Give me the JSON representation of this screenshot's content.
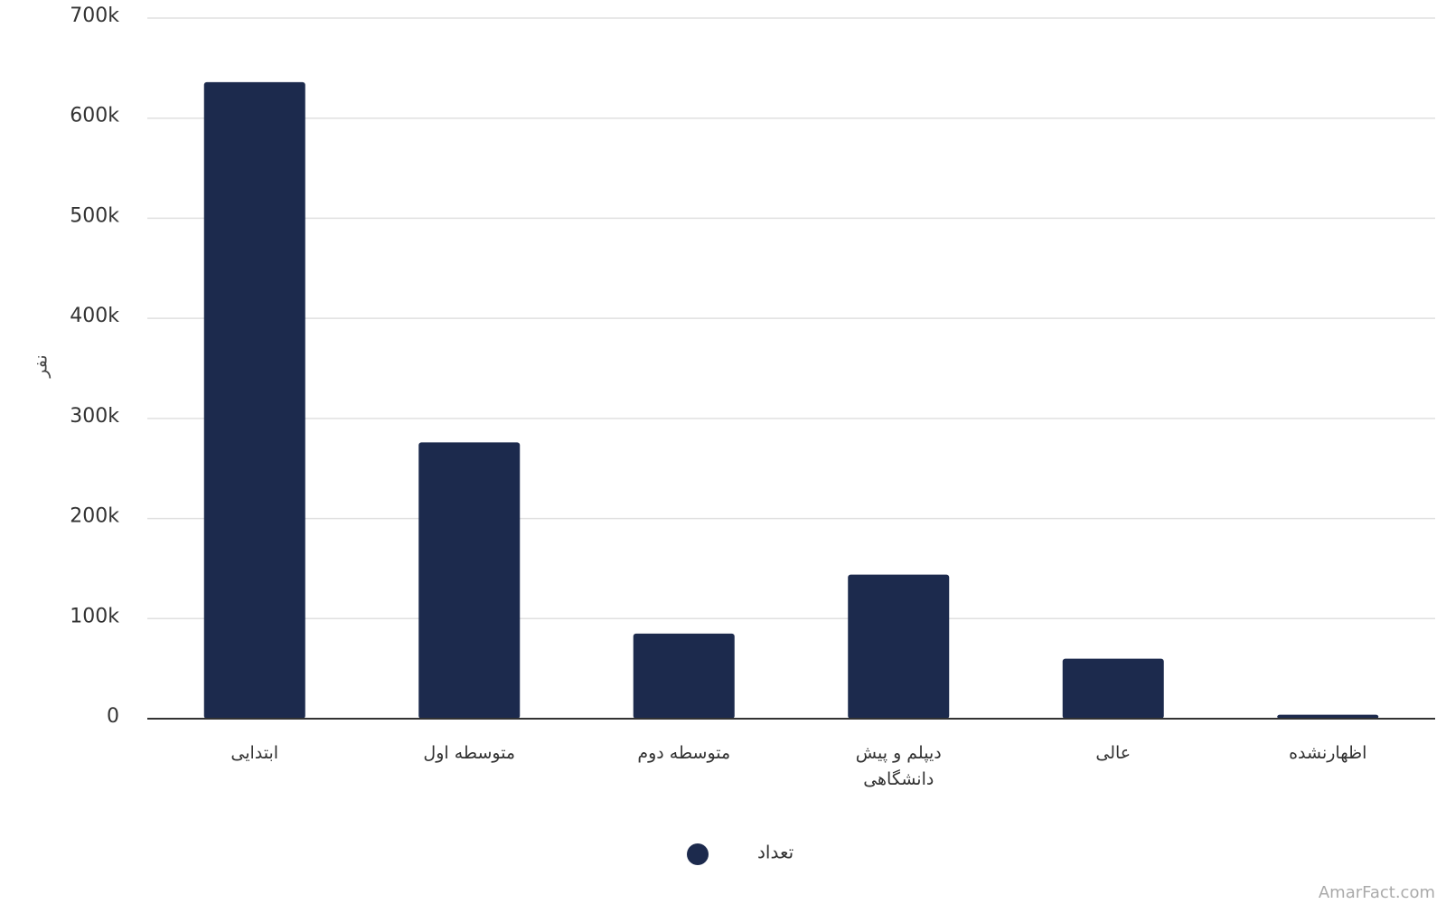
{
  "chart_data": {
    "type": "bar",
    "y_axis_label": "نفر",
    "categories": [
      "ابتدایی",
      "متوسطه اول",
      "متوسطه دوم",
      "دیپلم و پیش دانشگاهی",
      "عالی",
      "اظهارنشده"
    ],
    "series": [
      {
        "name": "تعداد",
        "color": "#1c2a4d",
        "values": [
          636000,
          276000,
          85000,
          144000,
          60000,
          4000
        ]
      }
    ],
    "ylim": [
      0,
      700000
    ],
    "yticks": [
      0,
      {
        "value": 100000,
        "label": "100k"
      },
      {
        "value": 200000,
        "label": "200k"
      },
      {
        "value": 300000,
        "label": "300k"
      },
      {
        "value": 400000,
        "label": "400k"
      },
      {
        "value": 500000,
        "label": "500k"
      },
      {
        "value": 600000,
        "label": "600k"
      },
      {
        "value": 700000,
        "label": "700k"
      }
    ],
    "grid": true,
    "legend": "bottom",
    "watermark": "AmarFact.com"
  }
}
